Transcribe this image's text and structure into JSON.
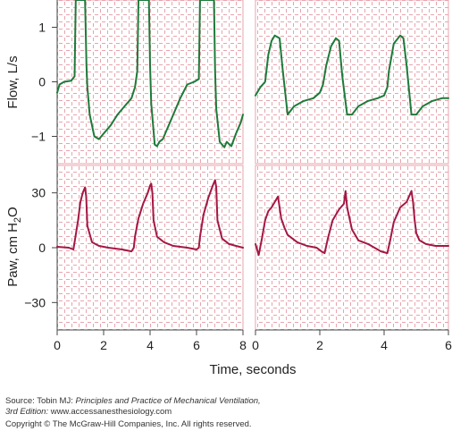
{
  "chart_data": {
    "type": "line",
    "colors": {
      "flow": "#1e7a3a",
      "paw": "#a31845",
      "grid": "#e8a4ad",
      "axis": "#444444"
    },
    "x_axis_label": "Time, seconds",
    "left_panel": {
      "xlim": [
        0,
        8
      ],
      "xticks": [
        "0",
        "2",
        "4",
        "6",
        "8"
      ]
    },
    "right_panel": {
      "xlim": [
        0,
        6
      ],
      "xticks": [
        "0",
        "2",
        "4",
        "6"
      ]
    },
    "flow": {
      "ylabel": "Flow, L/s",
      "ylim": [
        -1.5,
        1.5
      ],
      "yticks": [
        "1",
        "0",
        "−1"
      ],
      "left_series": {
        "x": [
          0,
          0.1,
          0.3,
          0.6,
          0.75,
          0.8,
          0.85,
          1.0,
          1.2,
          1.26,
          1.3,
          1.4,
          1.6,
          1.8,
          2.0,
          2.3,
          2.6,
          2.9,
          3.2,
          3.35,
          3.45,
          3.5,
          3.8,
          3.95,
          4.0,
          4.05,
          4.2,
          4.3,
          4.4,
          4.55,
          4.7,
          4.85,
          5.0,
          5.3,
          5.6,
          5.9,
          6.1,
          6.15,
          6.2,
          6.6,
          6.75,
          6.8,
          6.85,
          7.0,
          7.2,
          7.3,
          7.5,
          7.7,
          7.9,
          8.0
        ],
        "y": [
          -0.2,
          -0.05,
          0.0,
          0.02,
          0.1,
          1.5,
          1.5,
          1.5,
          1.5,
          0.3,
          -0.1,
          -0.6,
          -1.0,
          -1.05,
          -0.95,
          -0.8,
          -0.6,
          -0.45,
          -0.3,
          -0.1,
          0.2,
          1.5,
          1.5,
          1.5,
          0.3,
          -0.4,
          -1.15,
          -1.18,
          -1.1,
          -1.05,
          -0.9,
          -0.75,
          -0.6,
          -0.3,
          -0.05,
          0.0,
          0.05,
          1.5,
          1.5,
          1.5,
          1.5,
          0.2,
          -0.5,
          -1.1,
          -1.2,
          -1.1,
          -1.18,
          -0.95,
          -0.75,
          -0.6
        ]
      },
      "right_series": {
        "x": [
          0,
          0.15,
          0.3,
          0.4,
          0.5,
          0.6,
          0.75,
          0.85,
          1.0,
          1.2,
          1.5,
          1.8,
          2.0,
          2.1,
          2.2,
          2.35,
          2.5,
          2.6,
          2.7,
          2.85,
          3.0,
          3.2,
          3.5,
          3.8,
          4.0,
          4.1,
          4.15,
          4.3,
          4.5,
          4.6,
          4.7,
          4.85,
          5.0,
          5.2,
          5.5,
          5.8,
          6.0
        ],
        "y": [
          -0.25,
          -0.1,
          0.0,
          0.5,
          0.75,
          0.85,
          0.8,
          0.2,
          -0.6,
          -0.45,
          -0.35,
          -0.3,
          -0.2,
          -0.05,
          0.3,
          0.65,
          0.8,
          0.75,
          0.1,
          -0.6,
          -0.6,
          -0.45,
          -0.35,
          -0.3,
          -0.25,
          -0.1,
          0.2,
          0.7,
          0.85,
          0.8,
          0.3,
          -0.6,
          -0.6,
          -0.45,
          -0.35,
          -0.3,
          -0.3
        ]
      }
    },
    "paw": {
      "ylabel_main": "Paw, cm H",
      "ylabel_sub": "2",
      "ylabel_end": "O",
      "ylim": [
        -45,
        45
      ],
      "yticks": [
        "30",
        "0",
        "−30"
      ],
      "left_series": {
        "x": [
          0,
          0.5,
          0.7,
          0.75,
          0.9,
          1.0,
          1.1,
          1.2,
          1.25,
          1.3,
          1.5,
          1.8,
          2.2,
          2.8,
          3.2,
          3.3,
          3.35,
          3.5,
          3.7,
          3.9,
          4.0,
          4.05,
          4.1,
          4.15,
          4.3,
          4.6,
          5.0,
          5.6,
          6.0,
          6.1,
          6.15,
          6.3,
          6.5,
          6.7,
          6.8,
          6.85,
          6.9,
          7.1,
          7.4,
          7.7,
          8.0
        ],
        "y": [
          0.5,
          0,
          -1,
          3,
          15,
          25,
          30,
          33,
          28,
          12,
          3,
          1,
          0,
          -1,
          -2,
          0,
          6,
          16,
          24,
          30,
          34,
          35,
          30,
          15,
          6,
          3,
          1,
          0,
          -1,
          0,
          6,
          18,
          27,
          34,
          37,
          33,
          15,
          5,
          2,
          1,
          0
        ]
      },
      "right_series": {
        "x": [
          0,
          0.05,
          0.1,
          0.2,
          0.3,
          0.4,
          0.5,
          0.6,
          0.7,
          0.75,
          0.8,
          0.9,
          1.0,
          1.3,
          1.6,
          1.9,
          2.05,
          2.15,
          2.25,
          2.4,
          2.6,
          2.75,
          2.8,
          2.85,
          3.0,
          3.2,
          3.5,
          3.9,
          4.1,
          4.2,
          4.3,
          4.5,
          4.7,
          4.85,
          4.9,
          4.95,
          5.0,
          5.1,
          5.3,
          5.6,
          6.0
        ],
        "y": [
          2,
          -1,
          -4,
          5,
          15,
          20,
          22,
          25,
          28,
          22,
          16,
          11,
          7,
          3,
          1,
          0,
          -2,
          -3,
          5,
          15,
          21,
          24,
          31,
          22,
          10,
          4,
          2,
          -2,
          -3,
          5,
          14,
          22,
          25,
          31,
          25,
          15,
          8,
          4,
          2,
          1,
          1
        ]
      }
    },
    "source": {
      "prefix": "Source: Tobin MJ: ",
      "title": "Principles and Practice of Mechanical Ventilation,",
      "edition": "3rd Edition:",
      "url": " www.accessanesthesiology.com",
      "copyright": "Copyright © The McGraw-Hill Companies, Inc. All rights reserved."
    }
  }
}
